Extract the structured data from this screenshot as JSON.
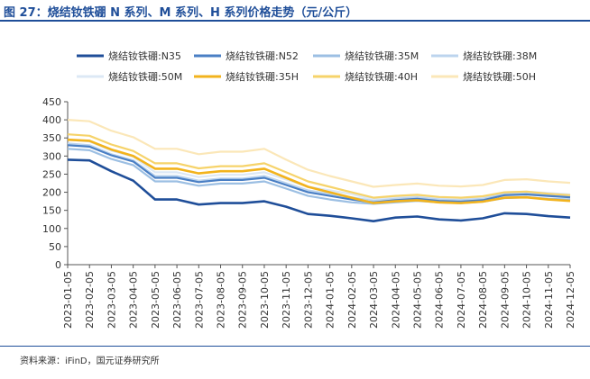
{
  "header": {
    "title": "图 27：烧结钕铁硼 N 系列、M 系列、H 系列价格走势（元/公斤）"
  },
  "footer": {
    "source": "资料来源：iFinD，国元证券研究所"
  },
  "chart_data": {
    "type": "line",
    "title": "烧结钕铁硼 N 系列、M 系列、H 系列价格走势（元/公斤）",
    "ylabel": "",
    "xlabel": "",
    "ylim": [
      0,
      450
    ],
    "yticks": [
      0,
      50,
      100,
      150,
      200,
      250,
      300,
      350,
      400,
      450
    ],
    "categories": [
      "2023-01-05",
      "2023-02-05",
      "2023-03-05",
      "2023-04-05",
      "2023-05-05",
      "2023-06-05",
      "2023-07-05",
      "2023-08-05",
      "2023-09-05",
      "2023-10-05",
      "2023-11-05",
      "2023-12-05",
      "2024-01-05",
      "2024-02-05",
      "2024-03-05",
      "2024-04-05",
      "2024-05-05",
      "2024-06-05",
      "2024-07-05",
      "2024-08-05",
      "2024-09-05",
      "2024-10-05",
      "2024-11-05",
      "2024-12-05"
    ],
    "legend_position": "top",
    "series": [
      {
        "name": "烧结钕铁硼:N35",
        "color": "#1f4e99",
        "values": [
          290,
          288,
          258,
          232,
          180,
          180,
          166,
          170,
          170,
          175,
          160,
          140,
          135,
          128,
          120,
          130,
          133,
          125,
          122,
          128,
          142,
          140,
          134,
          130
        ]
      },
      {
        "name": "烧结钕铁硼:N52",
        "color": "#4a7fc4",
        "values": [
          330,
          326,
          302,
          285,
          240,
          240,
          228,
          234,
          234,
          240,
          220,
          200,
          190,
          180,
          172,
          178,
          182,
          176,
          174,
          178,
          192,
          194,
          190,
          186
        ]
      },
      {
        "name": "烧结钕铁硼:35M",
        "color": "#9cbfe3",
        "values": [
          320,
          316,
          292,
          275,
          230,
          230,
          218,
          224,
          224,
          230,
          210,
          190,
          180,
          172,
          168,
          172,
          176,
          172,
          170,
          174,
          184,
          186,
          182,
          180
        ]
      },
      {
        "name": "烧结钕铁硼:38M",
        "color": "#bcd4ee",
        "values": [
          335,
          330,
          305,
          288,
          245,
          245,
          232,
          238,
          238,
          245,
          225,
          205,
          195,
          186,
          176,
          182,
          186,
          180,
          178,
          182,
          196,
          198,
          194,
          190
        ]
      },
      {
        "name": "烧结钕铁硼:50M",
        "color": "#dce8f5",
        "values": [
          345,
          340,
          315,
          298,
          255,
          255,
          242,
          248,
          248,
          255,
          235,
          215,
          205,
          195,
          180,
          186,
          190,
          184,
          182,
          186,
          200,
          202,
          198,
          194
        ]
      },
      {
        "name": "烧结钕铁硼:35H",
        "color": "#f2b31d",
        "values": [
          345,
          342,
          318,
          300,
          265,
          265,
          252,
          258,
          258,
          265,
          240,
          215,
          200,
          185,
          170,
          175,
          178,
          172,
          170,
          174,
          185,
          186,
          180,
          176
        ]
      },
      {
        "name": "烧结钕铁硼:40H",
        "color": "#f6d36a",
        "values": [
          360,
          356,
          332,
          314,
          280,
          280,
          266,
          272,
          272,
          280,
          255,
          230,
          215,
          200,
          185,
          190,
          193,
          187,
          185,
          189,
          200,
          202,
          196,
          192
        ]
      },
      {
        "name": "烧结钕铁硼:50H",
        "color": "#fbe7b8",
        "values": [
          400,
          396,
          370,
          352,
          320,
          320,
          305,
          312,
          312,
          320,
          290,
          262,
          245,
          230,
          215,
          220,
          224,
          218,
          216,
          220,
          234,
          236,
          230,
          226
        ]
      }
    ]
  }
}
